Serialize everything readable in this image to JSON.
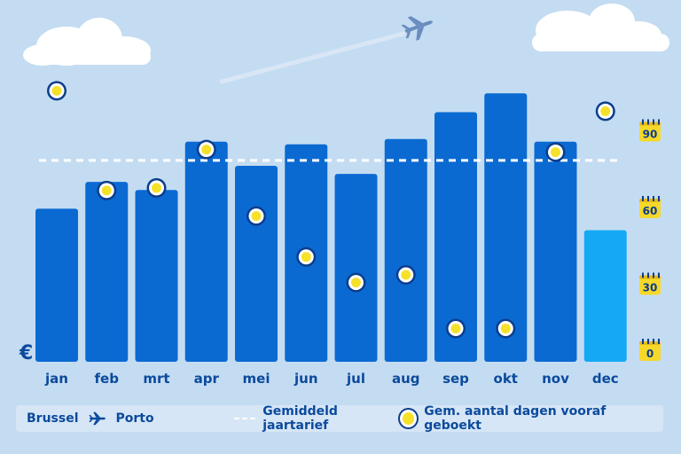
{
  "chart_data": {
    "type": "bar",
    "currency_symbol": "€",
    "categories": [
      "jan",
      "feb",
      "mrt",
      "apr",
      "mei",
      "jun",
      "jul",
      "aug",
      "sep",
      "okt",
      "nov",
      "dec"
    ],
    "series": [
      {
        "name": "Brussel ✈ Porto",
        "values": [
          57,
          67,
          64,
          82,
          73,
          81,
          70,
          83,
          93,
          100,
          82,
          49
        ],
        "colors": {
          "default": "#0a6ad2",
          "highlight": "#15a9f5"
        },
        "highlight_index": 11
      },
      {
        "name": "Gem. aantal dagen vooraf geboekt",
        "values": [
          106,
          67,
          68,
          83,
          57,
          41,
          31,
          34,
          13,
          13,
          82,
          98
        ],
        "axis": "right"
      }
    ],
    "average_line": {
      "label": "Gemiddeld jaartarief",
      "value": 75
    },
    "right_axis": {
      "ticks": [
        0,
        30,
        60,
        90
      ],
      "ylim": [
        0,
        120
      ]
    },
    "ylim": [
      0,
      109
    ]
  },
  "legend": {
    "origin": "Brussel",
    "destination": "Porto",
    "average_label": "Gemiddeld jaartarief",
    "days_label": "Gem. aantal dagen vooraf geboekt"
  },
  "colors": {
    "background": "#c4dcf2",
    "bar": "#0a6ad2",
    "bar_highlight": "#15a9f5",
    "label": "#0b4a9c",
    "marker_fill": "#f5e12a",
    "marker_ring": "#0b3d8c",
    "calendar": "#f5d82a"
  }
}
